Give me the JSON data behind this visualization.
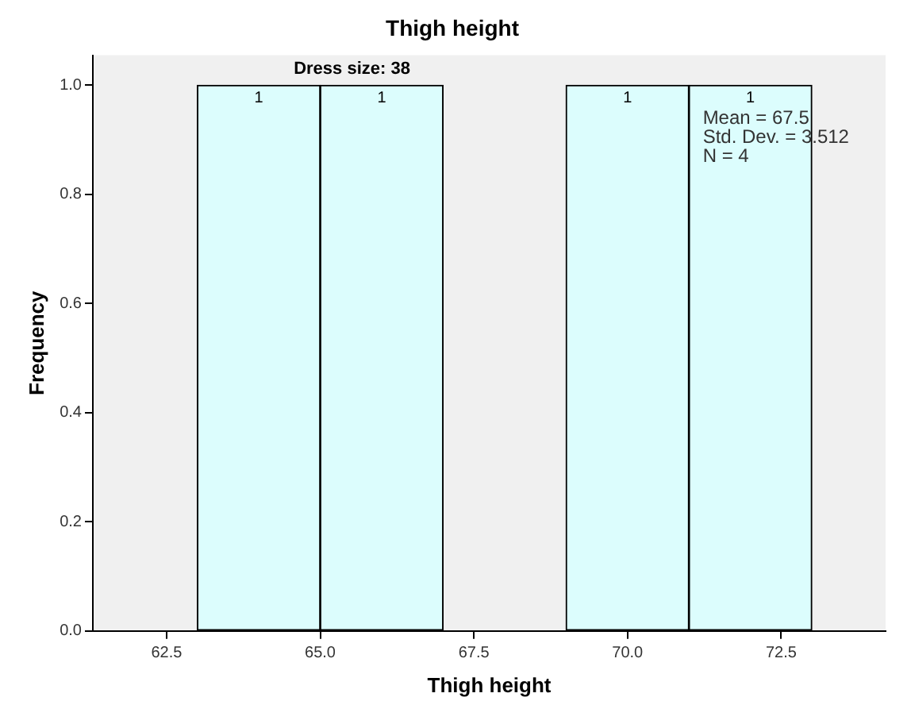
{
  "chart_data": {
    "type": "histogram",
    "title": "Thigh height",
    "subtitle": "Dress size: 38",
    "xlabel": "Thigh height",
    "ylabel": "Frequency",
    "bins": [
      63,
      65,
      67,
      69,
      71,
      73
    ],
    "values": [
      1,
      1,
      0,
      1,
      1
    ],
    "value_labels": [
      "1",
      "1",
      null,
      "1",
      "1"
    ],
    "color": "#dcfdfd",
    "xlim": [
      61.3,
      74.2
    ],
    "xticks": [
      {
        "value": 62.5,
        "label": "62.5"
      },
      {
        "value": 65,
        "label": "65.0"
      },
      {
        "value": 67.5,
        "label": "67.5"
      },
      {
        "value": 70,
        "label": "70.0"
      },
      {
        "value": 72.5,
        "label": "72.5"
      }
    ],
    "ylim": [
      0,
      1.055
    ],
    "yticks": [
      {
        "value": 0,
        "label": "0.0"
      },
      {
        "value": 0.2,
        "label": "0.2"
      },
      {
        "value": 0.4,
        "label": "0.4"
      },
      {
        "value": 0.6,
        "label": "0.6"
      },
      {
        "value": 0.8,
        "label": "0.8"
      },
      {
        "value": 1,
        "label": "1.0"
      }
    ],
    "annotations": [
      "Mean = 67.5",
      "Std. Dev. = 3.512",
      "N = 4"
    ],
    "grid": false,
    "legend": false
  }
}
